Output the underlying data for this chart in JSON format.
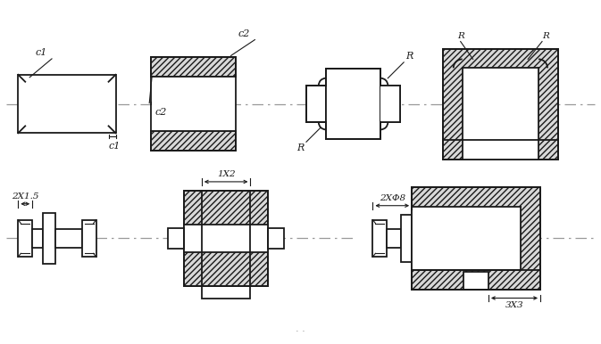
{
  "bg_color": "#ffffff",
  "lc": "#1a1a1a",
  "hatch_fc": "#d8d8d8",
  "dash_color": "#999999",
  "fig_w": 6.73,
  "fig_h": 3.86,
  "dpi": 100,
  "annotations": {
    "c1": "c1",
    "c2": "c2",
    "R": "R",
    "dim1": "2X1.5",
    "dim2": "1X2",
    "dim3": "2XΦ8",
    "dim4": "3X3"
  },
  "r1y": 270,
  "r2y": 118
}
